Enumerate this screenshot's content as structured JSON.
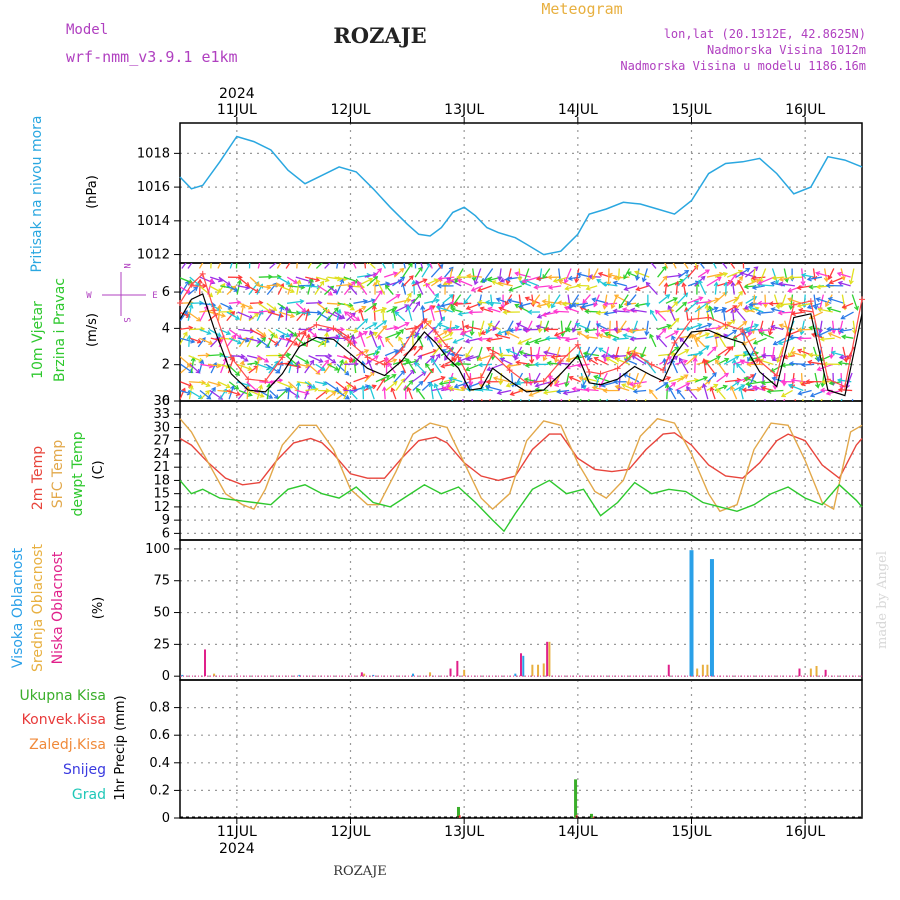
{
  "header": {
    "model_label": "Model",
    "model_name": "wrf-nmm_v3.9.1  e1km",
    "station": "ROZAJE",
    "meteogram": "Meteogram",
    "lonlat": "lon,lat (20.1312E, 42.8625N)",
    "altitude": "Nadmorska Visina 1012m",
    "model_altitude": "Nadmorska Visina u modelu 1186.16m"
  },
  "footer": {
    "station": "ROZAJE",
    "watermark": "made by Angel"
  },
  "colors": {
    "pressure": "#2aa7e0",
    "wind_speed": "#000000",
    "gust": "#ff4a4a",
    "temp2m": "#e8453c",
    "sfc_temp": "#e2a84a",
    "dewpt": "#2ec82e",
    "high_cloud": "#2aa0e8",
    "mid_cloud": "#e8b040",
    "low_cloud": "#e0208a",
    "total_precip": "#3aae2a",
    "conv_precip": "#e83a3a",
    "frozen_precip": "#f08a3a",
    "snow": "#3a3ae0",
    "hail": "#20c8b8",
    "purple_text": "#b040c0"
  },
  "chart_data": [
    {
      "type": "line",
      "title": "Pritisak na nivou mora",
      "ylabel": "(hPa)",
      "ylim": [
        1011.5,
        1019.8
      ],
      "yticks": [
        1012,
        1014,
        1016,
        1018
      ],
      "x_unit": "days from 2024-07-10 12:00",
      "xticks": [
        "11JUL",
        "12JUL",
        "13JUL",
        "14JUL",
        "15JUL",
        "16JUL"
      ],
      "year_label": "2024",
      "grid": true,
      "series": [
        {
          "name": "Pritisak na nivou mora",
          "x": [
            0,
            0.1,
            0.2,
            0.35,
            0.5,
            0.65,
            0.8,
            0.95,
            1.1,
            1.25,
            1.4,
            1.55,
            1.7,
            1.85,
            2.0,
            2.1,
            2.2,
            2.3,
            2.4,
            2.5,
            2.6,
            2.7,
            2.8,
            2.95,
            3.05,
            3.2,
            3.35,
            3.5,
            3.6,
            3.75,
            3.9,
            4.05,
            4.2,
            4.35,
            4.5,
            4.65,
            4.8,
            4.95,
            5.1,
            5.25,
            5.4,
            5.55,
            5.7,
            5.85,
            6.0
          ],
          "y": [
            1016.6,
            1015.9,
            1016.1,
            1017.5,
            1019.0,
            1018.7,
            1018.2,
            1017.0,
            1016.2,
            1016.7,
            1017.2,
            1016.9,
            1015.9,
            1014.8,
            1013.8,
            1013.2,
            1013.1,
            1013.6,
            1014.5,
            1014.8,
            1014.3,
            1013.6,
            1013.3,
            1013.0,
            1012.6,
            1012.0,
            1012.2,
            1013.2,
            1014.4,
            1014.7,
            1015.1,
            1015.0,
            1014.7,
            1014.4,
            1015.2,
            1016.8,
            1017.4,
            1017.5,
            1017.7,
            1016.8,
            1015.6,
            1016.0,
            1017.8,
            1017.6,
            1017.2
          ]
        }
      ]
    },
    {
      "type": "line",
      "title": "10m Vjetar Brzina i Pravac",
      "ylabel": "(m/s)",
      "ylim": [
        0,
        7.6
      ],
      "yticks": [
        0,
        2,
        4,
        6
      ],
      "compass": [
        "N",
        "W",
        "E",
        "S"
      ],
      "grid": true,
      "series": [
        {
          "name": "wind_speed",
          "x": [
            0,
            0.1,
            0.2,
            0.3,
            0.45,
            0.6,
            0.75,
            0.9,
            1.05,
            1.2,
            1.35,
            1.5,
            1.65,
            1.8,
            1.95,
            2.05,
            2.15,
            2.25,
            2.35,
            2.45,
            2.55,
            2.65,
            2.75,
            2.9,
            3.05,
            3.2,
            3.35,
            3.5,
            3.6,
            3.7,
            3.85,
            4.0,
            4.15,
            4.25,
            4.35,
            4.5,
            4.65,
            4.8,
            4.95,
            5.1,
            5.25,
            5.4,
            5.55,
            5.7,
            5.85,
            6.0
          ],
          "y": [
            4.5,
            5.6,
            5.9,
            4.0,
            1.5,
            0.6,
            0.5,
            1.5,
            3.0,
            3.5,
            3.4,
            2.6,
            1.8,
            1.4,
            2.2,
            3.0,
            3.8,
            3.2,
            2.4,
            1.8,
            0.6,
            0.7,
            1.8,
            1.1,
            0.5,
            0.6,
            1.5,
            2.5,
            1.0,
            0.9,
            1.2,
            1.9,
            1.4,
            1.1,
            2.5,
            3.8,
            3.9,
            3.5,
            3.2,
            1.6,
            0.8,
            4.6,
            4.8,
            0.6,
            0.3,
            4.8
          ]
        },
        {
          "name": "gust",
          "x": [
            0,
            0.1,
            0.2,
            0.3,
            0.45,
            0.6,
            0.75,
            0.9,
            1.05,
            1.2,
            1.35,
            1.5,
            1.65,
            1.8,
            1.95,
            2.05,
            2.15,
            2.25,
            2.35,
            2.45,
            2.55,
            2.65,
            2.75,
            2.9,
            3.05,
            3.2,
            3.35,
            3.5,
            3.6,
            3.7,
            3.85,
            4.0,
            4.15,
            4.25,
            4.35,
            4.5,
            4.65,
            4.8,
            4.95,
            5.1,
            5.25,
            5.4,
            5.55,
            5.7,
            5.85,
            6.0
          ],
          "y": [
            5.4,
            6.4,
            7.0,
            5.0,
            2.4,
            1.2,
            1.1,
            2.4,
            3.7,
            4.2,
            4.0,
            3.2,
            2.4,
            2.0,
            2.8,
            3.8,
            4.4,
            3.8,
            3.0,
            2.4,
            1.2,
            1.3,
            2.6,
            1.7,
            1.0,
            1.1,
            2.2,
            3.1,
            1.6,
            1.5,
            1.8,
            2.6,
            2.0,
            1.7,
            3.2,
            4.5,
            4.6,
            4.2,
            3.9,
            2.2,
            1.4,
            5.3,
            5.5,
            1.2,
            0.8,
            5.6
          ]
        }
      ]
    },
    {
      "type": "line",
      "title": "2m Temp / SFC Temp / dewpt Temp",
      "ylabel": "(C)",
      "ylim": [
        4.5,
        36
      ],
      "yticks": [
        6,
        9,
        12,
        15,
        18,
        21,
        24,
        27,
        30,
        33,
        36
      ],
      "grid": true,
      "series": [
        {
          "name": "2m Temp",
          "x": [
            0,
            0.1,
            0.25,
            0.4,
            0.55,
            0.7,
            0.85,
            1.0,
            1.15,
            1.25,
            1.35,
            1.5,
            1.65,
            1.8,
            1.95,
            2.1,
            2.25,
            2.35,
            2.5,
            2.65,
            2.8,
            2.95,
            3.1,
            3.25,
            3.35,
            3.5,
            3.65,
            3.8,
            3.95,
            4.1,
            4.25,
            4.35,
            4.5,
            4.65,
            4.8,
            4.95,
            5.1,
            5.25,
            5.35,
            5.5,
            5.65,
            5.8,
            5.95,
            6.0
          ],
          "y": [
            27.5,
            26.0,
            22.0,
            18.5,
            17.0,
            17.5,
            22.5,
            26.5,
            27.5,
            26.5,
            24.0,
            19.5,
            18.5,
            18.5,
            23.0,
            27.0,
            27.8,
            26.5,
            22.0,
            19.0,
            18.0,
            19.0,
            25.0,
            28.5,
            28.5,
            23.0,
            20.5,
            20.0,
            20.5,
            25.0,
            28.5,
            28.8,
            26.0,
            21.5,
            19.0,
            18.5,
            22.0,
            27.0,
            28.5,
            27.0,
            21.5,
            18.5,
            26.0,
            27.5
          ]
        },
        {
          "name": "SFC Temp",
          "x": [
            0,
            0.1,
            0.25,
            0.4,
            0.55,
            0.65,
            0.75,
            0.9,
            1.05,
            1.2,
            1.35,
            1.5,
            1.65,
            1.75,
            1.9,
            2.05,
            2.2,
            2.35,
            2.5,
            2.65,
            2.75,
            2.9,
            3.05,
            3.2,
            3.35,
            3.5,
            3.65,
            3.75,
            3.9,
            4.05,
            4.2,
            4.35,
            4.5,
            4.65,
            4.75,
            4.9,
            5.05,
            5.2,
            5.35,
            5.5,
            5.65,
            5.75,
            5.9,
            6.0
          ],
          "y": [
            32.0,
            29.0,
            22.0,
            15.0,
            12.5,
            11.5,
            16.0,
            26.0,
            30.5,
            30.5,
            25.0,
            16.0,
            12.5,
            12.5,
            20.0,
            28.5,
            31.0,
            30.0,
            22.0,
            14.0,
            11.5,
            15.0,
            27.0,
            31.5,
            30.5,
            22.0,
            15.5,
            14.0,
            18.0,
            28.0,
            32.0,
            31.0,
            24.0,
            15.0,
            11.0,
            12.5,
            25.0,
            31.0,
            30.5,
            22.5,
            13.0,
            11.5,
            29.0,
            30.5
          ]
        },
        {
          "name": "dewpt Temp",
          "x": [
            0,
            0.1,
            0.2,
            0.35,
            0.5,
            0.65,
            0.8,
            0.95,
            1.1,
            1.25,
            1.4,
            1.55,
            1.7,
            1.85,
            2.0,
            2.15,
            2.3,
            2.45,
            2.6,
            2.75,
            2.85,
            2.95,
            3.1,
            3.25,
            3.4,
            3.55,
            3.7,
            3.85,
            4.0,
            4.15,
            4.3,
            4.45,
            4.6,
            4.75,
            4.9,
            5.05,
            5.2,
            5.35,
            5.5,
            5.65,
            5.8,
            5.95,
            6.0
          ],
          "y": [
            18.0,
            15.0,
            16.0,
            14.0,
            13.5,
            13.0,
            12.5,
            16.0,
            17.0,
            15.0,
            14.0,
            16.5,
            13.0,
            12.0,
            14.5,
            17.0,
            15.0,
            16.5,
            13.0,
            9.0,
            6.5,
            10.5,
            16.0,
            18.0,
            15.0,
            16.0,
            10.0,
            13.0,
            17.5,
            15.0,
            16.0,
            15.5,
            13.0,
            12.0,
            11.0,
            12.5,
            15.0,
            16.5,
            14.0,
            12.5,
            17.0,
            13.5,
            12.0
          ]
        }
      ]
    },
    {
      "type": "bar",
      "title": "Visoka / Srednja / Niska Oblacnost",
      "ylabel": "(%)",
      "ylim": [
        -3,
        107
      ],
      "yticks": [
        0,
        25,
        50,
        75,
        100
      ],
      "grid": true,
      "series": [
        {
          "name": "Visoka Oblacnost",
          "x": [
            0.02,
            1.05,
            1.7,
            2.05,
            2.95,
            3.02,
            4.5,
            4.68
          ],
          "values": [
            1,
            1,
            1,
            2,
            2,
            16,
            99,
            92
          ]
        },
        {
          "name": "Srednja Oblacnost",
          "x": [
            0.3,
            1.62,
            2.2,
            2.5,
            3.1,
            3.15,
            3.2,
            3.25,
            4.55,
            4.6,
            4.64,
            5.55,
            5.6
          ],
          "values": [
            2,
            2,
            3,
            5,
            9,
            9,
            10,
            27,
            6,
            9,
            9,
            6,
            8
          ]
        },
        {
          "name": "Niska Oblacnost",
          "x": [
            0.22,
            1.6,
            2.38,
            2.44,
            3.0,
            3.23,
            4.3,
            5.45,
            5.68
          ],
          "values": [
            21,
            3,
            6,
            12,
            18,
            27,
            9,
            6,
            5
          ]
        }
      ]
    },
    {
      "type": "bar",
      "title": "Ukupna Kisa / Konvek.Kisa / Zaledj.Kisa / Snijeg / Grad",
      "ylabel": "1hr Precip (mm)",
      "ylim": [
        0,
        1.0
      ],
      "yticks": [
        0,
        0.2,
        0.4,
        0.6,
        0.8
      ],
      "grid": true,
      "series": [
        {
          "name": "Ukupna Kisa",
          "x": [
            2.45,
            3.48,
            3.62
          ],
          "values": [
            0.08,
            0.28,
            0.03
          ]
        },
        {
          "name": "Konvek.Kisa",
          "x": [
            2.46,
            3.49,
            3.64
          ],
          "values": [
            0.02,
            0.02,
            0.01
          ]
        },
        {
          "name": "Zaledj.Kisa",
          "x": [],
          "values": []
        },
        {
          "name": "Snijeg",
          "x": [],
          "values": []
        },
        {
          "name": "Grad",
          "x": [],
          "values": []
        }
      ]
    }
  ],
  "labels": {
    "p1_title": "Pritisak na nivou mora",
    "p1_unit": "(hPa)",
    "p2_title1": "10m Vjetar",
    "p2_title2": "Brzina i Pravac",
    "p2_unit": "(m/s)",
    "compass_n": "N",
    "compass_w": "W",
    "compass_e": "E",
    "compass_s": "S",
    "p3_l1": "2m Temp",
    "p3_l2": "SFC Temp",
    "p3_l3": "dewpt Temp",
    "p3_unit": "(C)",
    "p4_l1": "Visoka Oblacnost",
    "p4_l2": "Srednja Oblacnost",
    "p4_l3": "Niska Oblacnost",
    "p4_unit": "(%)",
    "p5_l1": "Ukupna Kisa",
    "p5_l2": "Konvek.Kisa",
    "p5_l3": "Zaledj.Kisa",
    "p5_l4": "Snijeg",
    "p5_l5": "Grad",
    "p5_unit": "1hr Precip (mm)"
  }
}
